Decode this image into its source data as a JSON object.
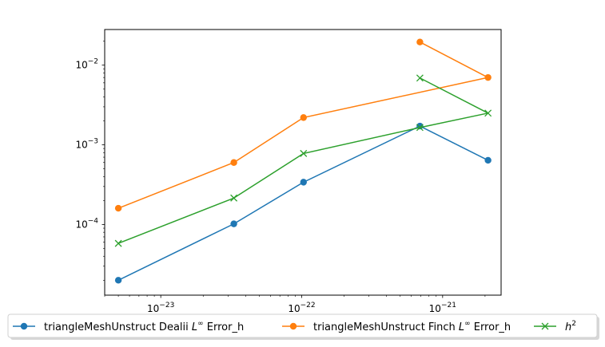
{
  "chart_data": {
    "type": "line",
    "title": "",
    "xlabel": "",
    "ylabel": "",
    "x_scale": "log",
    "y_scale": "log",
    "xlim": [
      4e-24,
      2.6e-21
    ],
    "ylim": [
      1.3e-05,
      0.028
    ],
    "grid": false,
    "legend_placement": "below plot",
    "x_ticks": [
      {
        "value": 1e-23,
        "label": "10",
        "exp": "−23"
      },
      {
        "value": 1e-22,
        "label": "10",
        "exp": "−22"
      },
      {
        "value": 1e-21,
        "label": "10",
        "exp": "−21"
      }
    ],
    "y_ticks": [
      {
        "value": 0.0001,
        "label": "10",
        "exp": "−4"
      },
      {
        "value": 0.001,
        "label": "10",
        "exp": "−3"
      },
      {
        "value": 0.01,
        "label": "10",
        "exp": "−2"
      }
    ],
    "series": [
      {
        "name_prefix": "triangleMeshUnstruct Dealii ",
        "name_math": "L",
        "name_sup": "∞",
        "name_suffix": " Error_h",
        "color": "#1f77b4",
        "marker": "circle",
        "x": [
          5e-24,
          3.3e-23,
          1.03e-22,
          6.9e-22,
          2.1e-21
        ],
        "y": [
          2e-05,
          0.000102,
          0.00034,
          0.00172,
          0.00064
        ]
      },
      {
        "name_prefix": "triangleMeshUnstruct Finch ",
        "name_math": "L",
        "name_sup": "∞",
        "name_suffix": " Error_h",
        "color": "#ff7f0e",
        "marker": "circle",
        "x": [
          5e-24,
          3.3e-23,
          1.03e-22,
          2.1e-21,
          6.9e-22
        ],
        "y": [
          0.00016,
          0.0006,
          0.0022,
          0.007,
          0.0195
        ]
      },
      {
        "name_prefix": "",
        "name_math": "h",
        "name_sup": "2",
        "name_suffix": "",
        "color": "#2ca02c",
        "marker": "x",
        "x": [
          5e-24,
          3.3e-23,
          1.03e-22,
          6.9e-22,
          2.1e-21,
          6.9e-22
        ],
        "y": [
          5.8e-05,
          0.000215,
          0.00078,
          0.00165,
          0.0025,
          0.0069
        ]
      }
    ]
  }
}
